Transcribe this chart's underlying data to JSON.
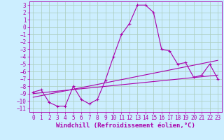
{
  "background_color": "#cceeff",
  "grid_color": "#aaccbb",
  "line_color": "#aa00aa",
  "xlabel": "Windchill (Refroidissement éolien,°C)",
  "xlim": [
    -0.5,
    23.5
  ],
  "ylim": [
    -11.5,
    3.5
  ],
  "yticks": [
    3,
    2,
    1,
    0,
    -1,
    -2,
    -3,
    -4,
    -5,
    -6,
    -7,
    -8,
    -9,
    -10,
    -11
  ],
  "xticks": [
    0,
    1,
    2,
    3,
    4,
    5,
    6,
    7,
    8,
    9,
    10,
    11,
    12,
    13,
    14,
    15,
    16,
    17,
    18,
    19,
    20,
    21,
    22,
    23
  ],
  "series1_x": [
    0,
    1,
    2,
    3,
    4,
    5,
    6,
    7,
    8,
    9,
    10,
    11,
    12,
    13,
    14,
    15,
    16,
    17,
    18,
    19,
    20,
    21,
    22,
    23
  ],
  "series1_y": [
    -8.8,
    -8.5,
    -10.2,
    -10.7,
    -10.7,
    -8.0,
    -9.8,
    -10.4,
    -9.8,
    -7.2,
    -4.0,
    -1.0,
    0.5,
    3.0,
    3.0,
    2.0,
    -3.0,
    -3.2,
    -5.0,
    -4.8,
    -6.8,
    -6.5,
    -5.0,
    -7.0
  ],
  "series2_x": [
    0,
    23
  ],
  "series2_y": [
    -9.0,
    -6.5
  ],
  "series3_x": [
    0,
    23
  ],
  "series3_y": [
    -9.5,
    -4.5
  ],
  "xlabel_fontsize": 6.5,
  "tick_fontsize": 5.5
}
